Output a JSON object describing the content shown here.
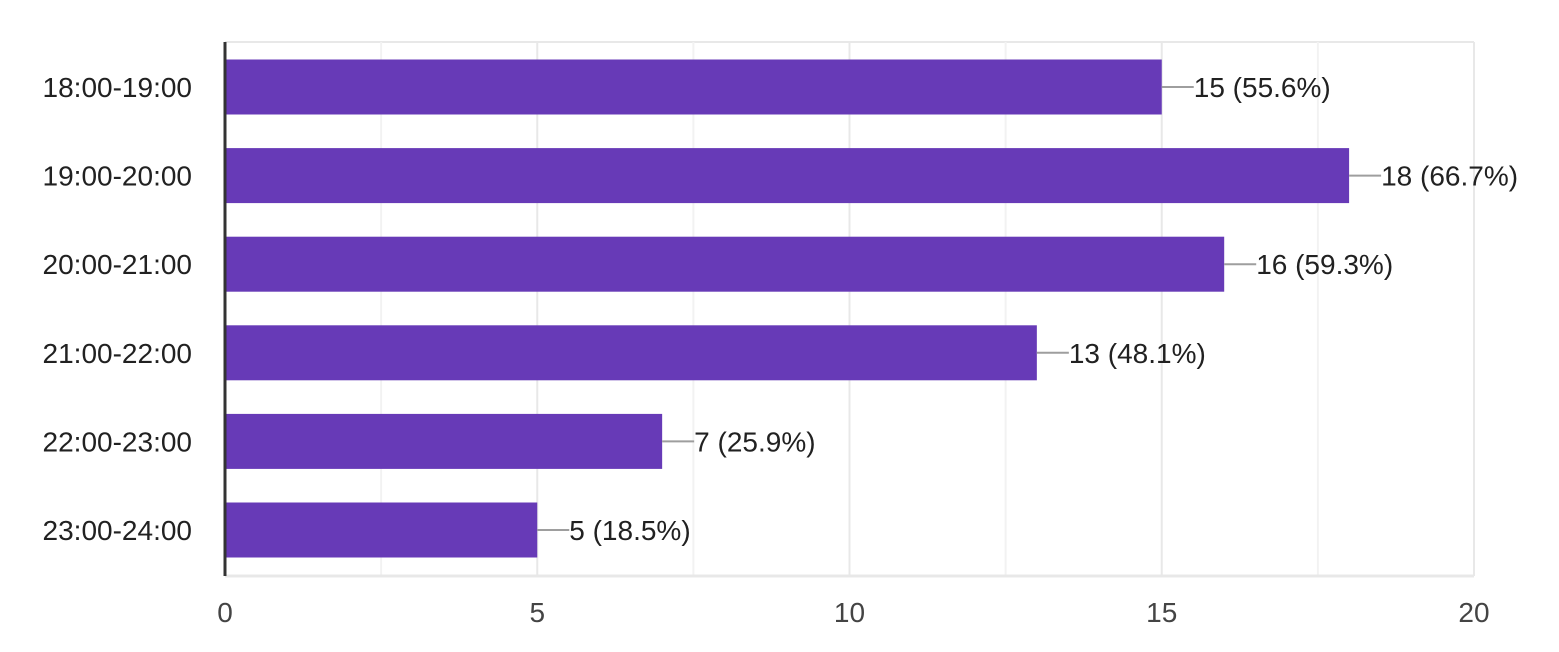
{
  "chart_data": {
    "type": "bar",
    "orientation": "horizontal",
    "categories": [
      "18:00-19:00",
      "19:00-20:00",
      "20:00-21:00",
      "21:00-22:00",
      "22:00-23:00",
      "23:00-24:00"
    ],
    "values": [
      15,
      18,
      16,
      13,
      7,
      5
    ],
    "value_labels": [
      "15 (55.6%)",
      "18 (66.7%)",
      "16 (59.3%)",
      "13 (48.1%)",
      "7 (25.9%)",
      "5 (18.5%)"
    ],
    "xlim": [
      0,
      20
    ],
    "xticks": [
      0,
      5,
      10,
      15,
      20
    ],
    "minor_gridlines": [
      2.5,
      7.5,
      12.5,
      17.5
    ],
    "grid": true,
    "legend": "none",
    "colors": {
      "bar": "#673ab7",
      "grid": "#e8e8e8",
      "axis": "#333333",
      "connector": "#9e9e9e"
    }
  }
}
